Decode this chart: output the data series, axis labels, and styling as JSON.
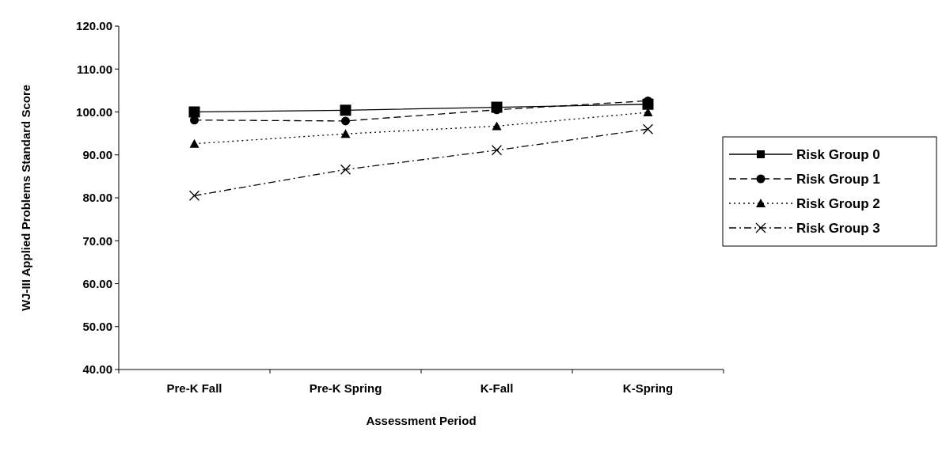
{
  "chart_data": {
    "type": "line",
    "xlabel": "Assessment Period",
    "ylabel": "WJ-III Applied Problems Standard Score",
    "categories": [
      "Pre-K Fall",
      "Pre-K Spring",
      "K-Fall",
      "K-Spring"
    ],
    "ylim": [
      40,
      120
    ],
    "yticks": [
      {
        "value": 40,
        "label": "40.00"
      },
      {
        "value": 50,
        "label": "50.00"
      },
      {
        "value": 60,
        "label": "60.00"
      },
      {
        "value": 70,
        "label": "70.00"
      },
      {
        "value": 80,
        "label": "80.00"
      },
      {
        "value": 90,
        "label": "90.00"
      },
      {
        "value": 100,
        "label": "100.00"
      },
      {
        "value": 110,
        "label": "110.00"
      },
      {
        "value": 120,
        "label": "120.00"
      }
    ],
    "legend": "right",
    "grid": false,
    "series": [
      {
        "name": "Risk Group 0",
        "color": "#000000",
        "marker": "square",
        "line_style": "solid",
        "values": [
          100.0,
          100.4,
          101.1,
          101.8
        ]
      },
      {
        "name": "Risk Group 1",
        "color": "#000000",
        "marker": "circle",
        "line_style": "dashed",
        "values": [
          98.1,
          97.9,
          100.5,
          102.6
        ]
      },
      {
        "name": "Risk Group 2",
        "color": "#000000",
        "marker": "triangle",
        "line_style": "dotted",
        "values": [
          92.6,
          94.9,
          96.7,
          99.9
        ]
      },
      {
        "name": "Risk Group 3",
        "color": "#000000",
        "marker": "cross",
        "line_style": "dashdot",
        "values": [
          80.5,
          86.6,
          91.1,
          96.0
        ]
      }
    ]
  }
}
